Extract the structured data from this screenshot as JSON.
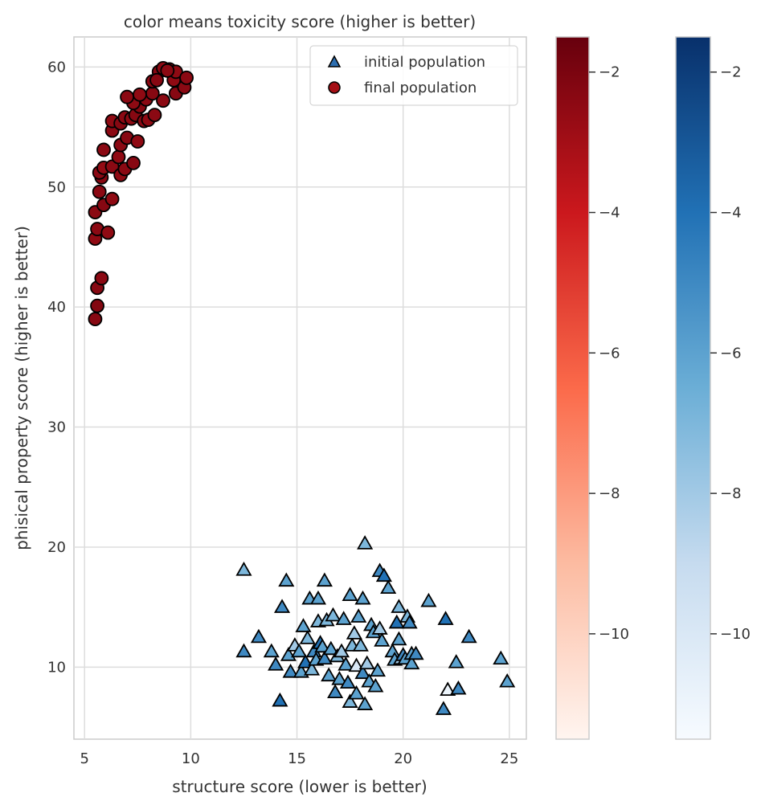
{
  "chart_data": {
    "type": "scatter",
    "title": "color means toxicity score (higher is better)",
    "xlabel": "structure score (lower is better)",
    "ylabel": "phisical property score (higher is better)",
    "xlim": [
      4.5,
      25.8
    ],
    "ylim": [
      4,
      62.5
    ],
    "xticks": [
      5,
      10,
      15,
      20,
      25
    ],
    "yticks": [
      10,
      20,
      30,
      40,
      50,
      60
    ],
    "grid": true,
    "legend_position": "top-right",
    "colorbar_ticks": [
      -2,
      -4,
      -6,
      -8,
      -10
    ],
    "colorbar_range": [
      -11.5,
      -1.5
    ],
    "series": [
      {
        "name": "initial population",
        "marker": "triangle",
        "colormap": "Blues",
        "points": [
          [
            12.5,
            18.1,
            -7
          ],
          [
            12.5,
            11.3,
            -5
          ],
          [
            13.2,
            12.5,
            -5
          ],
          [
            13.8,
            11.3,
            -6
          ],
          [
            14,
            10.2,
            -5
          ],
          [
            14.2,
            7.2,
            -4
          ],
          [
            14.3,
            15.0,
            -5
          ],
          [
            14.5,
            17.2,
            -6
          ],
          [
            14.6,
            11.0,
            -6
          ],
          [
            14.7,
            9.6,
            -5
          ],
          [
            14.9,
            11.8,
            -8
          ],
          [
            15.1,
            11.3,
            -6
          ],
          [
            15.2,
            9.6,
            -6
          ],
          [
            15.3,
            13.4,
            -6
          ],
          [
            15.4,
            10.4,
            -4
          ],
          [
            15.5,
            12.4,
            -7
          ],
          [
            15.6,
            15.7,
            -6
          ],
          [
            15.7,
            9.8,
            -7
          ],
          [
            15.8,
            11.3,
            -5
          ],
          [
            15.9,
            10.6,
            -6
          ],
          [
            16.0,
            15.7,
            -6
          ],
          [
            16.0,
            13.8,
            -7
          ],
          [
            16.1,
            12.0,
            -4
          ],
          [
            16.2,
            11.7,
            -6
          ],
          [
            16.3,
            17.2,
            -6
          ],
          [
            16.3,
            10.7,
            -5
          ],
          [
            16.4,
            13.9,
            -7
          ],
          [
            16.5,
            9.3,
            -6
          ],
          [
            16.6,
            11.5,
            -6
          ],
          [
            16.7,
            14.3,
            -7
          ],
          [
            16.8,
            7.9,
            -5
          ],
          [
            16.9,
            10.9,
            -7
          ],
          [
            17.0,
            9.0,
            -6
          ],
          [
            17.1,
            11.3,
            -8
          ],
          [
            17.2,
            14.0,
            -6
          ],
          [
            17.3,
            10.2,
            -6
          ],
          [
            17.4,
            8.7,
            -5
          ],
          [
            17.5,
            7.1,
            -7
          ],
          [
            17.5,
            16.0,
            -6
          ],
          [
            17.6,
            11.8,
            -7
          ],
          [
            17.7,
            12.8,
            -8
          ],
          [
            17.8,
            10.1,
            -10
          ],
          [
            17.8,
            7.8,
            -6
          ],
          [
            17.9,
            14.2,
            -6
          ],
          [
            18.0,
            11.8,
            -7
          ],
          [
            18.1,
            9.5,
            -5
          ],
          [
            18.1,
            15.7,
            -6
          ],
          [
            18.2,
            20.3,
            -7
          ],
          [
            18.2,
            6.9,
            -6
          ],
          [
            18.3,
            10.3,
            -8
          ],
          [
            18.4,
            8.8,
            -6
          ],
          [
            18.5,
            13.5,
            -6
          ],
          [
            18.6,
            12.9,
            -6
          ],
          [
            18.7,
            8.4,
            -6
          ],
          [
            18.8,
            9.7,
            -6
          ],
          [
            18.9,
            13.2,
            -8
          ],
          [
            18.9,
            18.0,
            -5
          ],
          [
            19.0,
            12.2,
            -6
          ],
          [
            19.1,
            17.6,
            -4
          ],
          [
            19.3,
            16.6,
            -6
          ],
          [
            19.5,
            11.3,
            -6
          ],
          [
            19.6,
            10.6,
            -6
          ],
          [
            19.7,
            13.7,
            -4
          ],
          [
            19.8,
            15.0,
            -7
          ],
          [
            19.8,
            12.3,
            -6
          ],
          [
            19.9,
            10.7,
            -8
          ],
          [
            20.0,
            11.0,
            -5
          ],
          [
            20.1,
            10.7,
            -6
          ],
          [
            20.2,
            14.2,
            -7
          ],
          [
            20.3,
            13.7,
            -5
          ],
          [
            20.4,
            11.1,
            -6
          ],
          [
            20.4,
            10.3,
            -6
          ],
          [
            20.6,
            11.1,
            -5
          ],
          [
            21.2,
            15.5,
            -6
          ],
          [
            21.9,
            6.5,
            -5
          ],
          [
            22.0,
            14.0,
            -4
          ],
          [
            22.1,
            8.1,
            -11
          ],
          [
            22.5,
            10.4,
            -6
          ],
          [
            22.6,
            8.2,
            -5
          ],
          [
            23.1,
            12.5,
            -5
          ],
          [
            24.6,
            10.7,
            -6
          ],
          [
            24.9,
            8.8,
            -6
          ]
        ]
      },
      {
        "name": "final population",
        "marker": "circle",
        "colormap": "Reds",
        "points": [
          [
            5.5,
            39.0,
            -2.3
          ],
          [
            5.6,
            40.1,
            -2.2
          ],
          [
            5.6,
            41.6,
            -2.3
          ],
          [
            5.8,
            42.4,
            -2.4
          ],
          [
            5.5,
            45.7,
            -2.5
          ],
          [
            5.6,
            46.5,
            -2.4
          ],
          [
            6.1,
            46.2,
            -2.5
          ],
          [
            5.5,
            47.9,
            -2.4
          ],
          [
            5.9,
            48.5,
            -2.3
          ],
          [
            5.7,
            49.6,
            -2.4
          ],
          [
            6.3,
            49.0,
            -2.5
          ],
          [
            5.8,
            50.8,
            -2.3
          ],
          [
            5.7,
            51.2,
            -2.4
          ],
          [
            5.9,
            51.6,
            -2.6
          ],
          [
            6.3,
            51.7,
            -2.4
          ],
          [
            6.7,
            51.0,
            -2.5
          ],
          [
            6.9,
            51.5,
            -2.4
          ],
          [
            7.3,
            52.0,
            -2.3
          ],
          [
            6.6,
            52.5,
            -2.5
          ],
          [
            5.9,
            53.1,
            -2.4
          ],
          [
            6.7,
            53.5,
            -2.4
          ],
          [
            7.0,
            54.1,
            -2.3
          ],
          [
            7.5,
            53.8,
            -2.5
          ],
          [
            6.3,
            54.7,
            -2.4
          ],
          [
            6.3,
            55.5,
            -2.5
          ],
          [
            6.7,
            55.3,
            -2.3
          ],
          [
            6.9,
            55.8,
            -2.4
          ],
          [
            7.2,
            55.7,
            -2.5
          ],
          [
            7.4,
            56.0,
            -2.3
          ],
          [
            7.8,
            55.5,
            -2.4
          ],
          [
            8.0,
            55.6,
            -2.5
          ],
          [
            8.3,
            56.0,
            -2.4
          ],
          [
            7.6,
            56.7,
            -2.3
          ],
          [
            7.3,
            57.0,
            -2.5
          ],
          [
            7.9,
            57.3,
            -2.4
          ],
          [
            8.2,
            57.8,
            -2.3
          ],
          [
            8.7,
            57.2,
            -2.4
          ],
          [
            7.0,
            57.5,
            -2.4
          ],
          [
            7.6,
            57.7,
            -2.5
          ],
          [
            9.3,
            57.8,
            -2.3
          ],
          [
            9.7,
            58.3,
            -2.4
          ],
          [
            9.2,
            58.9,
            -2.5
          ],
          [
            8.2,
            58.8,
            -2.4
          ],
          [
            8.5,
            59.6,
            -2.3
          ],
          [
            8.7,
            59.9,
            -2.4
          ],
          [
            9.0,
            59.8,
            -2.3
          ],
          [
            9.3,
            59.6,
            -2.5
          ],
          [
            9.8,
            59.1,
            -2.4
          ],
          [
            8.4,
            58.9,
            -2.3
          ],
          [
            8.9,
            59.7,
            -2.4
          ]
        ]
      }
    ]
  }
}
